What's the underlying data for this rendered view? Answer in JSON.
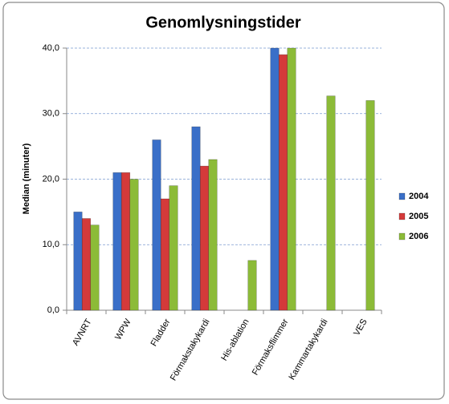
{
  "chart_data": {
    "type": "bar",
    "title": "Genomlysningstider",
    "y_label": "Median (minuter)",
    "categories": [
      "AVNRT",
      "WPW",
      "Fladder",
      "Förmakstakykardi",
      "His-ablation",
      "Förmaksflimmer",
      "Kammartakykardi",
      "VES"
    ],
    "series": [
      {
        "name": "2004",
        "color": "#3a6fc8",
        "values": [
          15,
          21,
          26,
          28,
          null,
          40,
          null,
          null
        ]
      },
      {
        "name": "2005",
        "color": "#d43a3a",
        "values": [
          14,
          21,
          17,
          22,
          null,
          39,
          null,
          null
        ]
      },
      {
        "name": "2006",
        "color": "#8cbb38",
        "values": [
          13,
          20,
          19,
          23,
          7.6,
          40,
          32.7,
          32
        ]
      }
    ],
    "ylim": [
      0,
      40
    ],
    "yticks": [
      {
        "value": 0,
        "label": "0,0"
      },
      {
        "value": 10,
        "label": "10,0"
      },
      {
        "value": 20,
        "label": "20,0"
      },
      {
        "value": 30,
        "label": "30,0"
      },
      {
        "value": 40,
        "label": "40,0"
      }
    ],
    "grid": true,
    "legend": "right"
  }
}
